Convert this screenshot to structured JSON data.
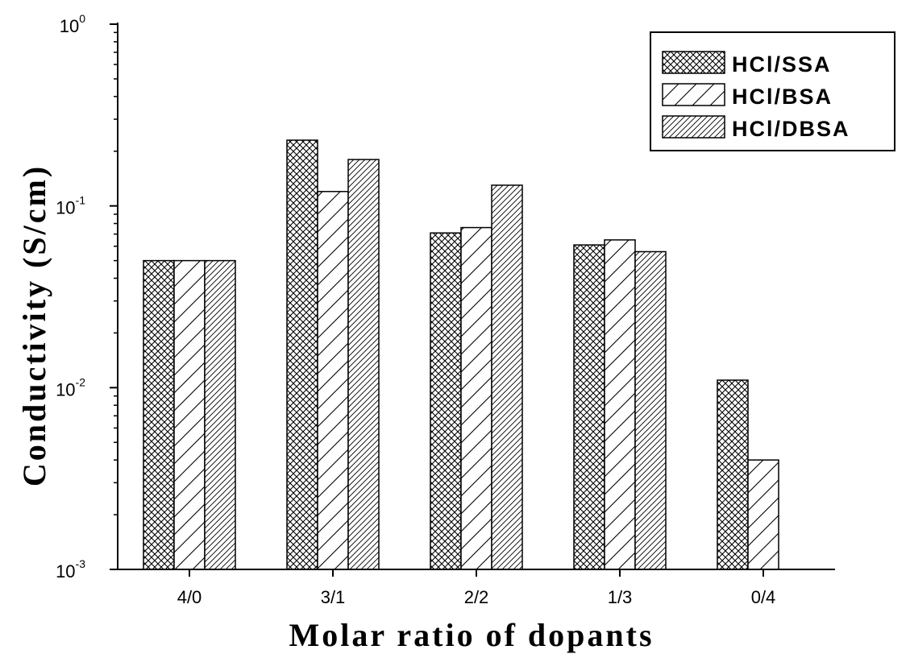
{
  "chart_data": {
    "type": "bar",
    "xlabel": "Molar ratio of dopants",
    "ylabel": "Conductivity (S/cm)",
    "y_scale": "log",
    "ylim": [
      0.001,
      1
    ],
    "y_ticks": [
      {
        "value": 1,
        "base": "10",
        "exp": "0"
      },
      {
        "value": 0.1,
        "base": "10",
        "exp": "-1"
      },
      {
        "value": 0.01,
        "base": "10",
        "exp": "-2"
      },
      {
        "value": 0.001,
        "base": "10",
        "exp": "-3"
      }
    ],
    "categories": [
      "4/0",
      "3/1",
      "2/2",
      "1/3",
      "0/4"
    ],
    "series": [
      {
        "name": "HCl/SSA",
        "pattern": "crosshatch",
        "values": [
          0.05,
          0.23,
          0.071,
          0.061,
          0.011
        ]
      },
      {
        "name": "HCl/BSA",
        "pattern": "wide-diagonal",
        "values": [
          0.05,
          0.12,
          0.076,
          0.065,
          0.004
        ]
      },
      {
        "name": "HCl/DBSA",
        "pattern": "dense-diagonal",
        "values": [
          0.05,
          0.18,
          0.13,
          0.056,
          null
        ]
      }
    ],
    "legend_position": "top-right",
    "grid": false,
    "colors": {
      "ink": "#000000",
      "background": "#ffffff"
    }
  }
}
